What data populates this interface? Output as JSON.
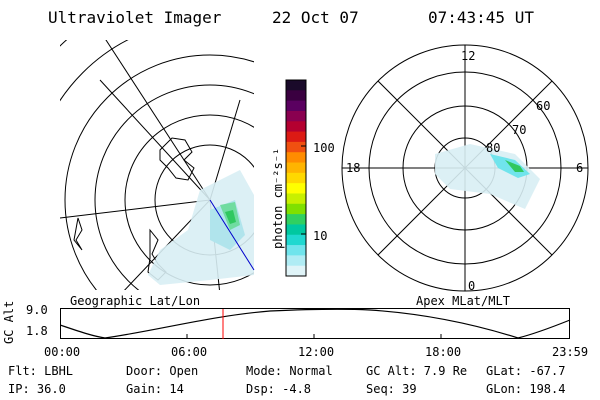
{
  "header": {
    "title": "Ultraviolet Imager",
    "date": "22 Oct 07",
    "time": "07:43:45 UT"
  },
  "left_panel": {
    "label": "Geographic Lat/Lon"
  },
  "right_panel": {
    "label": "Apex MLat/MLT",
    "mlt_labels": {
      "top": "12",
      "left": "18",
      "right": "6",
      "bottom": "0"
    },
    "mlat_labels": [
      "60",
      "70",
      "80"
    ]
  },
  "colorbar": {
    "unit_label": "photon cm⁻²s⁻¹",
    "ticks": [
      "100",
      "10"
    ],
    "colors": [
      "#1a0a2a",
      "#3a0040",
      "#5a0060",
      "#8a0050",
      "#b40030",
      "#dc1a14",
      "#f05010",
      "#ff8c00",
      "#ffb400",
      "#ffd800",
      "#ffff00",
      "#c8f000",
      "#80e000",
      "#30d060",
      "#00c8a0",
      "#20d8d0",
      "#70e4ec",
      "#b0ecf4",
      "#e0f4f8"
    ]
  },
  "altitude_plot": {
    "ylabel": "GC Alt",
    "yticks": [
      "9.0",
      "1.8"
    ],
    "xticks": [
      "00:00",
      "06:00",
      "12:00",
      "18:00",
      "23:59"
    ]
  },
  "footer": {
    "flt": "Flt: LBHL",
    "door": "Door: Open",
    "mode": "Mode: Normal",
    "gcalt": "GC Alt: 7.9 Re",
    "glat": "GLat: -67.7",
    "ip": "IP: 36.0",
    "gain": "Gain: 14",
    "dsp": "Dsp:    -4.8",
    "seq": "Seq: 39",
    "glon": "GLon: 198.4"
  }
}
